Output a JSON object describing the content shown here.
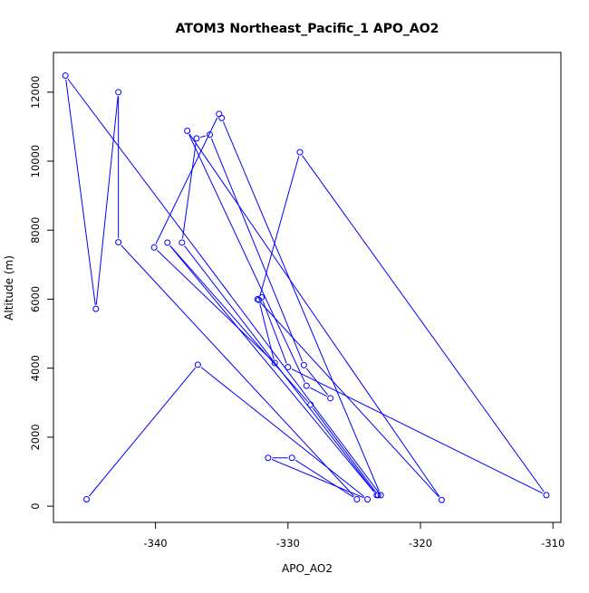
{
  "chart_data": {
    "type": "line",
    "title": "ATOM3 Northeast_Pacific_1 APO_AO2",
    "xlabel": "APO_AO2",
    "ylabel": "Altitude (m)",
    "xlim": [
      -347.7,
      -309.4
    ],
    "ylim": [
      -470,
      13150
    ],
    "x_ticks": [
      -340,
      -330,
      -320,
      -310
    ],
    "x_tick_labels": [
      "-340",
      "-330",
      "-320",
      "-310"
    ],
    "y_ticks": [
      0,
      2000,
      4000,
      6000,
      8000,
      10000,
      12000
    ],
    "y_tick_labels": [
      "0",
      "2000",
      "4000",
      "6000",
      "8000",
      "10000",
      "12000"
    ],
    "grid": false,
    "series": [
      {
        "color": "#0000ff",
        "marker": "open-circle",
        "x": [
          -345.2,
          -336.8,
          -324.0,
          -331.5,
          -329.7,
          -324.8,
          -342.8,
          -342.8,
          -344.5,
          -346.8,
          -323.0,
          -335.0,
          -335.2,
          -340.1,
          -331.0,
          -332.2,
          -329.1,
          -310.5,
          -330.0,
          -332.0,
          -332.3,
          -318.4,
          -337.6,
          -328.6,
          -326.8,
          -328.8,
          -335.9,
          -336.9,
          -338.0,
          -323.3,
          -339.1,
          -328.3,
          -323.2
        ],
        "y": [
          200,
          4100,
          200,
          1400,
          1400,
          200,
          7650,
          12000,
          5720,
          12480,
          320,
          11250,
          11370,
          7500,
          4150,
          5980,
          10260,
          320,
          4030,
          6050,
          6000,
          180,
          10880,
          3490,
          3130,
          4090,
          10770,
          10660,
          7640,
          320,
          7640,
          2940,
          320
        ]
      }
    ]
  }
}
